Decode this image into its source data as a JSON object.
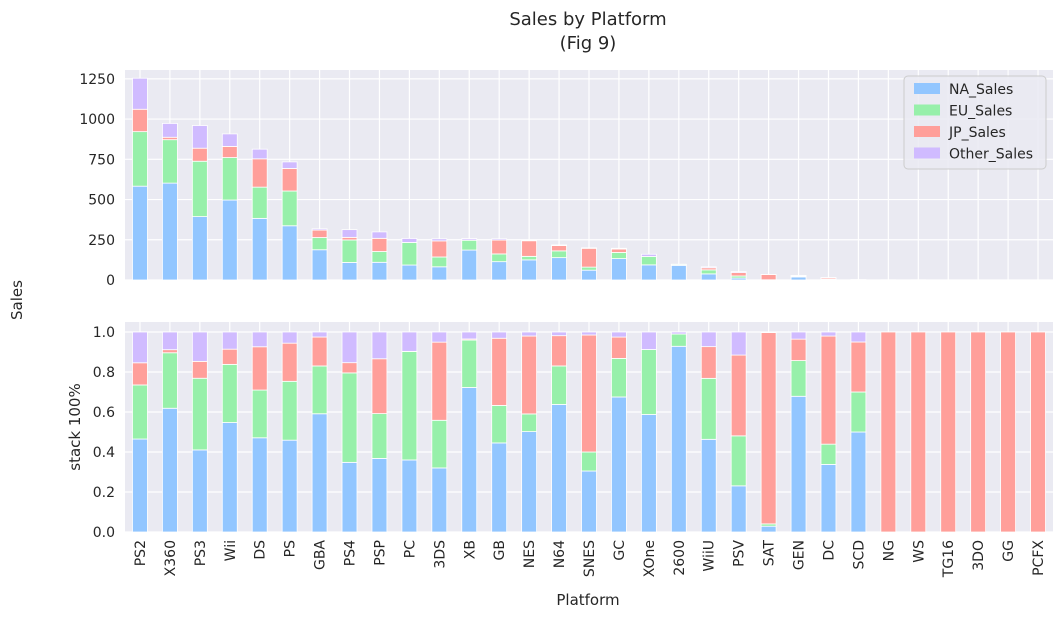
{
  "chart_data": {
    "type": "bar",
    "title": "Sales by Platform",
    "subtitle": "(Fig 9)",
    "figure_ylabel": "Sales",
    "xlabel": "Platform",
    "categories": [
      "PS2",
      "X360",
      "PS3",
      "Wii",
      "DS",
      "PS",
      "GBA",
      "PS4",
      "PSP",
      "PC",
      "3DS",
      "XB",
      "GB",
      "NES",
      "N64",
      "SNES",
      "GC",
      "XOne",
      "2600",
      "WiiU",
      "PSV",
      "SAT",
      "GEN",
      "DC",
      "SCD",
      "NG",
      "WS",
      "TG16",
      "3DO",
      "GG",
      "PCFX"
    ],
    "series": [
      {
        "name": "NA_Sales",
        "color": "#92c6ff",
        "values": [
          583,
          602,
          394,
          497,
          383,
          337,
          188,
          109,
          110,
          93,
          82,
          186,
          114,
          125,
          139,
          61,
          133,
          94,
          91,
          38,
          12,
          1,
          19,
          5,
          1,
          0,
          0,
          0,
          0,
          0,
          0
        ]
      },
      {
        "name": "EU_Sales",
        "color": "#97f0aa",
        "values": [
          339,
          270,
          344,
          264,
          194,
          216,
          76,
          140,
          67,
          140,
          61,
          61,
          48,
          22,
          42,
          19,
          38,
          52,
          6,
          25,
          13,
          0.4,
          5,
          1.5,
          0.4,
          0,
          0,
          0,
          0,
          0,
          0
        ]
      },
      {
        "name": "JP_Sales",
        "color": "#ff9f9a",
        "values": [
          139,
          15,
          81,
          69,
          176,
          140,
          46,
          16,
          82,
          0.2,
          100,
          1.4,
          86,
          97,
          33,
          117,
          21,
          0,
          0,
          13,
          21,
          33,
          3,
          8,
          0.5,
          1.4,
          1.4,
          0.2,
          0.1,
          0.04,
          0.03
        ]
      },
      {
        "name": "Other_Sales",
        "color": "#d0bbff",
        "values": [
          193,
          86,
          141,
          78,
          60,
          41,
          8,
          48,
          40,
          25,
          13,
          9,
          8,
          5,
          4,
          3,
          5,
          14,
          1,
          6,
          6,
          0.1,
          1,
          0.3,
          0.1,
          0,
          0,
          0,
          0,
          0,
          0
        ]
      }
    ],
    "panels": [
      {
        "id": "absolute",
        "ylabel": "",
        "ylim": [
          0,
          1305
        ],
        "yticks": [
          0,
          250,
          500,
          750,
          1000,
          1250
        ],
        "legend": "top-right"
      },
      {
        "id": "percent",
        "ylabel": "stack 100%",
        "ylim": [
          0,
          1.05
        ],
        "yticks": [
          "0.0",
          "0.2",
          "0.4",
          "0.6",
          "0.8",
          "1.0"
        ]
      }
    ],
    "grid": true,
    "colors": {
      "panel_bg": "#eaeaf2",
      "grid": "#ffffff",
      "text": "#262626"
    }
  }
}
